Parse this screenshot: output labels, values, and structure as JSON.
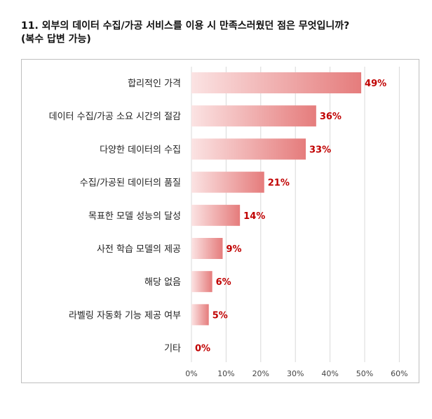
{
  "title_line1": "11. 외부의 데이터 수집/가공 서비스를 이용 시 만족스러웠던 점은 무엇입니까?",
  "title_line2": "(복수 답변 가능)",
  "chart_data": {
    "type": "bar",
    "orientation": "horizontal",
    "categories": [
      "합리적인 가격",
      "데이터 수집/가공 소요 시간의 절감",
      "다양한 데이터의 수집",
      "수집/가공된 데이터의 품질",
      "목표한 모델 성능의 달성",
      "사전 학습 모델의 제공",
      "해당 없음",
      "라벨링 자동화 기능 제공 여부",
      "기타"
    ],
    "values": [
      49,
      36,
      33,
      21,
      14,
      9,
      6,
      5,
      0
    ],
    "value_labels": [
      "49%",
      "36%",
      "33%",
      "21%",
      "14%",
      "9%",
      "6%",
      "5%",
      "0%"
    ],
    "xticks": [
      "0%",
      "10%",
      "20%",
      "30%",
      "40%",
      "50%",
      "60%"
    ],
    "xlim": [
      0,
      60
    ],
    "grid": true,
    "colors": {
      "bar_start": "#fbe3e3",
      "bar_end": "#e57c7c",
      "label": "#c00000",
      "grid": "#d9d9d9"
    }
  }
}
